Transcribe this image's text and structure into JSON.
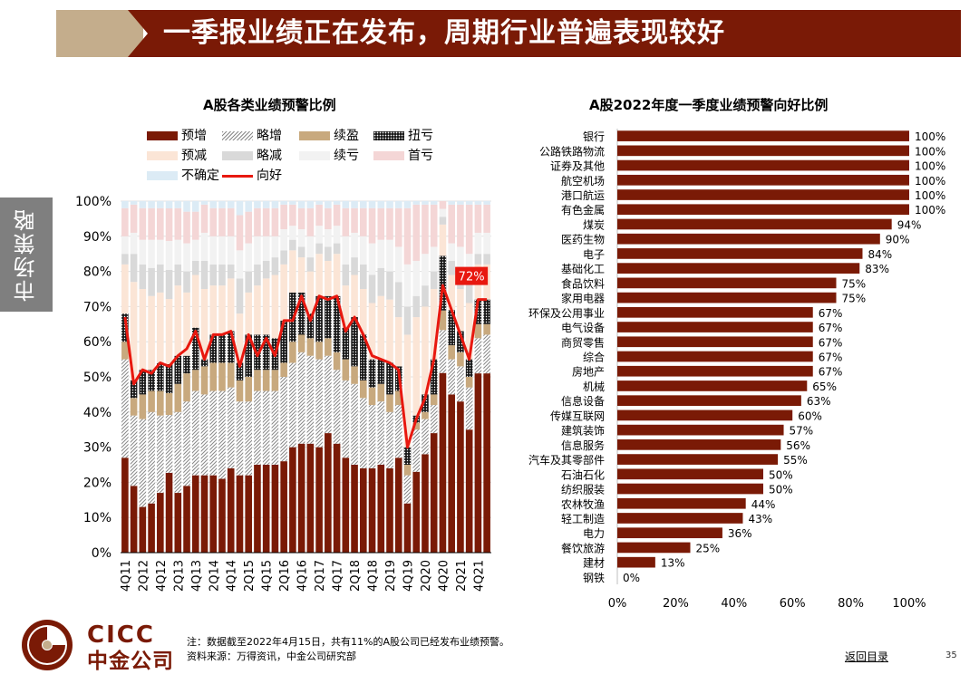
{
  "header": {
    "title": "一季报业绩正在发布，周期行业普遍表现较好"
  },
  "side_tab": {
    "label": "市场策略"
  },
  "footer": {
    "note": "注：数据截至2022年4月15日，共有11%的A股公司已经发布业绩预警。",
    "source": "资料来源：万得资讯，中金公司研究部",
    "back_link": "返回目录",
    "page_number": "35",
    "logo_en": "CICC",
    "logo_cn": "中金公司"
  },
  "colors": {
    "brand": "#7a1a06",
    "banner_accent": "#c4ad8c",
    "bar_fill": "#7a1a06",
    "line_red": "#e8180f",
    "grid": "#d9d9d9"
  },
  "chart_data": [
    {
      "type": "bar",
      "stacking": "percent",
      "title": "A股各类业绩预警比例",
      "ylim": [
        0,
        100
      ],
      "yticks": [
        "0%",
        "10%",
        "20%",
        "30%",
        "40%",
        "50%",
        "60%",
        "70%",
        "80%",
        "90%",
        "100%"
      ],
      "grid": true,
      "legend_position": "top",
      "tick_labels": [
        "4Q11",
        "2Q12",
        "4Q12",
        "2Q13",
        "4Q13",
        "2Q14",
        "4Q14",
        "2Q15",
        "4Q15",
        "2Q16",
        "4Q16",
        "2Q17",
        "4Q17",
        "2Q18",
        "4Q18",
        "2Q19",
        "4Q19",
        "2Q20",
        "4Q20",
        "2Q21",
        "4Q21"
      ],
      "categories": [
        "4Q11",
        "1Q12",
        "2Q12",
        "3Q12",
        "4Q12",
        "1Q13",
        "2Q13",
        "3Q13",
        "4Q13",
        "1Q14",
        "2Q14",
        "3Q14",
        "4Q14",
        "1Q15",
        "2Q15",
        "3Q15",
        "4Q15",
        "1Q16",
        "2Q16",
        "3Q16",
        "4Q16",
        "1Q17",
        "2Q17",
        "3Q17",
        "4Q17",
        "1Q18",
        "2Q18",
        "3Q18",
        "4Q18",
        "1Q19",
        "2Q19",
        "3Q19",
        "4Q19",
        "1Q20",
        "2Q20",
        "3Q20",
        "4Q20",
        "1Q21",
        "2Q21",
        "3Q21",
        "4Q21",
        "1Q22"
      ],
      "series": [
        {
          "name": "预增",
          "color": "#7a1a06",
          "pattern": "solid",
          "values": [
            27,
            19,
            13,
            14,
            17,
            22,
            17,
            19,
            22,
            22,
            22,
            21,
            24,
            22,
            22,
            25,
            25,
            25,
            26,
            30,
            31,
            31,
            30,
            34,
            31,
            27,
            25,
            24,
            24,
            25,
            24,
            27,
            14,
            23,
            28,
            34,
            46,
            45,
            43,
            35,
            51,
            51
          ]
        },
        {
          "name": "略增",
          "color": "#999999",
          "pattern": "diag",
          "values": [
            28,
            20,
            25,
            26,
            22,
            16,
            23,
            24,
            24,
            23,
            24,
            25,
            23,
            21,
            21,
            21,
            21,
            21,
            24,
            24,
            26,
            25,
            25,
            22,
            21,
            22,
            23,
            20,
            18,
            18,
            16,
            15,
            8,
            12,
            10,
            8,
            11,
            10,
            10,
            12,
            10,
            11
          ]
        },
        {
          "name": "续盈",
          "color": "#c8a97e",
          "pattern": "solid",
          "values": [
            5,
            5,
            7,
            6,
            7,
            6,
            8,
            8,
            6,
            8,
            8,
            8,
            7,
            6,
            7,
            6,
            6,
            6,
            4,
            6,
            5,
            5,
            5,
            5,
            5,
            6,
            5,
            5,
            5,
            5,
            5,
            4,
            3,
            2,
            2,
            3,
            5,
            4,
            4,
            3,
            4,
            3
          ]
        },
        {
          "name": "扭亏",
          "color": "#333333",
          "pattern": "dots",
          "values": [
            8,
            5,
            7,
            6,
            8,
            8,
            8,
            5,
            12,
            2,
            8,
            8,
            9,
            5,
            12,
            10,
            10,
            9,
            12,
            14,
            12,
            7,
            13,
            12,
            16,
            9,
            14,
            13,
            8,
            7,
            9,
            7,
            5,
            2,
            5,
            10,
            14,
            10,
            6,
            5,
            7,
            7
          ]
        },
        {
          "name": "预减",
          "color": "#fbe5d6",
          "pattern": "solid",
          "values": [
            14,
            28,
            23,
            21,
            20,
            18,
            20,
            18,
            15,
            20,
            14,
            14,
            15,
            14,
            12,
            14,
            16,
            18,
            16,
            12,
            10,
            12,
            12,
            10,
            12,
            12,
            12,
            13,
            16,
            18,
            18,
            14,
            32,
            28,
            25,
            20,
            8,
            10,
            12,
            16,
            10,
            10
          ]
        },
        {
          "name": "略减",
          "color": "#d9d9d9",
          "pattern": "solid",
          "values": [
            3,
            8,
            7,
            8,
            8,
            8,
            6,
            6,
            4,
            8,
            6,
            6,
            4,
            10,
            6,
            6,
            5,
            5,
            4,
            3,
            3,
            4,
            3,
            4,
            3,
            6,
            5,
            7,
            8,
            8,
            8,
            10,
            8,
            6,
            6,
            5,
            2,
            4,
            5,
            6,
            3,
            3
          ]
        },
        {
          "name": "续亏",
          "color": "#f2f2f2",
          "pattern": "solid",
          "values": [
            5,
            6,
            7,
            8,
            7,
            8,
            7,
            8,
            6,
            8,
            8,
            8,
            8,
            8,
            8,
            8,
            7,
            6,
            6,
            4,
            5,
            6,
            5,
            5,
            5,
            8,
            7,
            8,
            9,
            8,
            9,
            10,
            12,
            10,
            9,
            7,
            2,
            5,
            7,
            8,
            6,
            6
          ]
        },
        {
          "name": "首亏",
          "color": "#f4d6d6",
          "pattern": "solid",
          "values": [
            8,
            8,
            9,
            9,
            9,
            9,
            9,
            9,
            8,
            8,
            8,
            8,
            8,
            10,
            9,
            8,
            8,
            8,
            7,
            6,
            6,
            8,
            6,
            6,
            6,
            8,
            7,
            8,
            10,
            9,
            9,
            11,
            16,
            16,
            14,
            12,
            2,
            11,
            12,
            14,
            8,
            8
          ]
        },
        {
          "name": "不确定",
          "color": "#dcebf5",
          "pattern": "solid",
          "values": [
            2,
            1,
            2,
            2,
            2,
            2,
            2,
            3,
            3,
            1,
            2,
            2,
            2,
            4,
            3,
            2,
            2,
            2,
            1,
            1,
            2,
            2,
            1,
            2,
            1,
            2,
            2,
            2,
            2,
            2,
            2,
            2,
            2,
            1,
            1,
            1,
            0,
            1,
            1,
            1,
            1,
            1
          ]
        },
        {
          "name": "向好",
          "color": "#e8180f",
          "type": "line",
          "values": [
            67,
            48,
            52,
            51,
            54,
            53,
            56,
            58,
            63,
            55,
            62,
            62,
            63,
            53,
            62,
            56,
            61,
            56,
            66,
            66,
            73,
            66,
            73,
            72,
            73,
            63,
            67,
            62,
            56,
            55,
            54,
            52,
            30,
            38,
            44,
            55,
            76,
            69,
            62,
            55,
            72,
            72
          ]
        }
      ],
      "annotation": "72%"
    },
    {
      "type": "bar",
      "orientation": "horizontal",
      "title": "A股2022年度一季度业绩预警向好比例",
      "xlim": [
        0,
        100
      ],
      "xticks": [
        "0%",
        "20%",
        "40%",
        "60%",
        "80%",
        "100%"
      ],
      "categories": [
        "银行",
        "公路铁路物流",
        "证券及其他",
        "航空机场",
        "港口航运",
        "有色金属",
        "煤炭",
        "医药生物",
        "电子",
        "基础化工",
        "食品饮料",
        "家用电器",
        "环保及公用事业",
        "电气设备",
        "商贸零售",
        "综合",
        "房地产",
        "机械",
        "信息设备",
        "传媒互联网",
        "建筑装饰",
        "信息服务",
        "汽车及其零部件",
        "石油石化",
        "纺织服装",
        "农林牧渔",
        "轻工制造",
        "电力",
        "餐饮旅游",
        "建材",
        "钢铁"
      ],
      "values": [
        100,
        100,
        100,
        100,
        100,
        100,
        94,
        90,
        84,
        83,
        75,
        75,
        67,
        67,
        67,
        67,
        67,
        65,
        63,
        60,
        57,
        56,
        55,
        50,
        50,
        44,
        43,
        36,
        25,
        13,
        0
      ],
      "value_labels": [
        "100%",
        "100%",
        "100%",
        "100%",
        "100%",
        "100%",
        "94%",
        "90%",
        "84%",
        "83%",
        "75%",
        "75%",
        "67%",
        "67%",
        "67%",
        "67%",
        "67%",
        "65%",
        "63%",
        "60%",
        "57%",
        "56%",
        "55%",
        "50%",
        "50%",
        "44%",
        "43%",
        "36%",
        "25%",
        "13%",
        "0%"
      ]
    }
  ]
}
